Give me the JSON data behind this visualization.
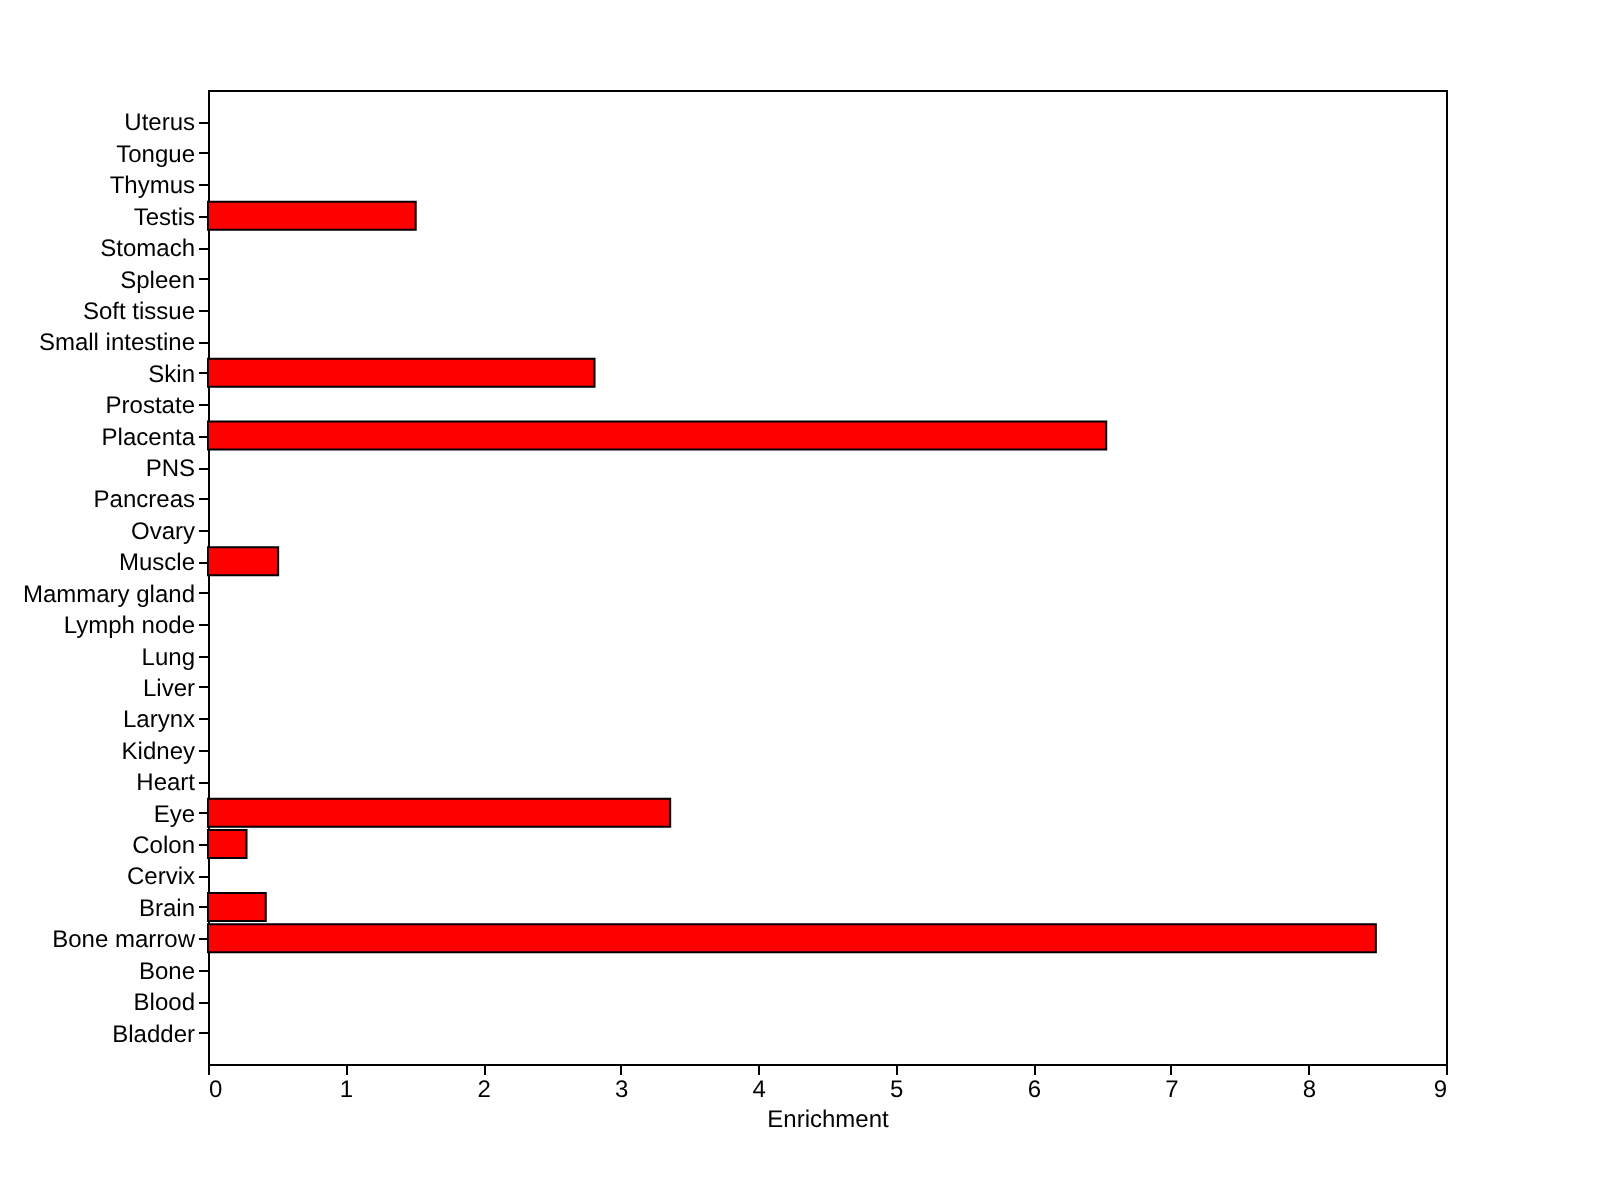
{
  "chart_data": {
    "type": "bar",
    "orientation": "horizontal",
    "xlabel": "Enrichment",
    "categories": [
      "Uterus",
      "Tongue",
      "Thymus",
      "Testis",
      "Stomach",
      "Spleen",
      "Soft tissue",
      "Small intestine",
      "Skin",
      "Prostate",
      "Placenta",
      "PNS",
      "Pancreas",
      "Ovary",
      "Muscle",
      "Mammary gland",
      "Lymph node",
      "Lung",
      "Liver",
      "Larynx",
      "Kidney",
      "Heart",
      "Eye",
      "Colon",
      "Cervix",
      "Brain",
      "Bone marrow",
      "Bone",
      "Blood",
      "Bladder"
    ],
    "values": [
      0,
      0,
      0,
      1.51,
      0,
      0,
      0,
      0,
      2.81,
      0,
      6.53,
      0,
      0,
      0,
      0.51,
      0,
      0,
      0,
      0,
      0,
      0,
      0,
      3.36,
      0.28,
      0,
      0.42,
      8.49,
      0,
      0,
      0
    ],
    "color": "#ff0000",
    "xlim": [
      0,
      9
    ],
    "xticks": [
      0,
      1,
      2,
      3,
      4,
      5,
      6,
      7,
      8,
      9
    ],
    "grid": false
  }
}
